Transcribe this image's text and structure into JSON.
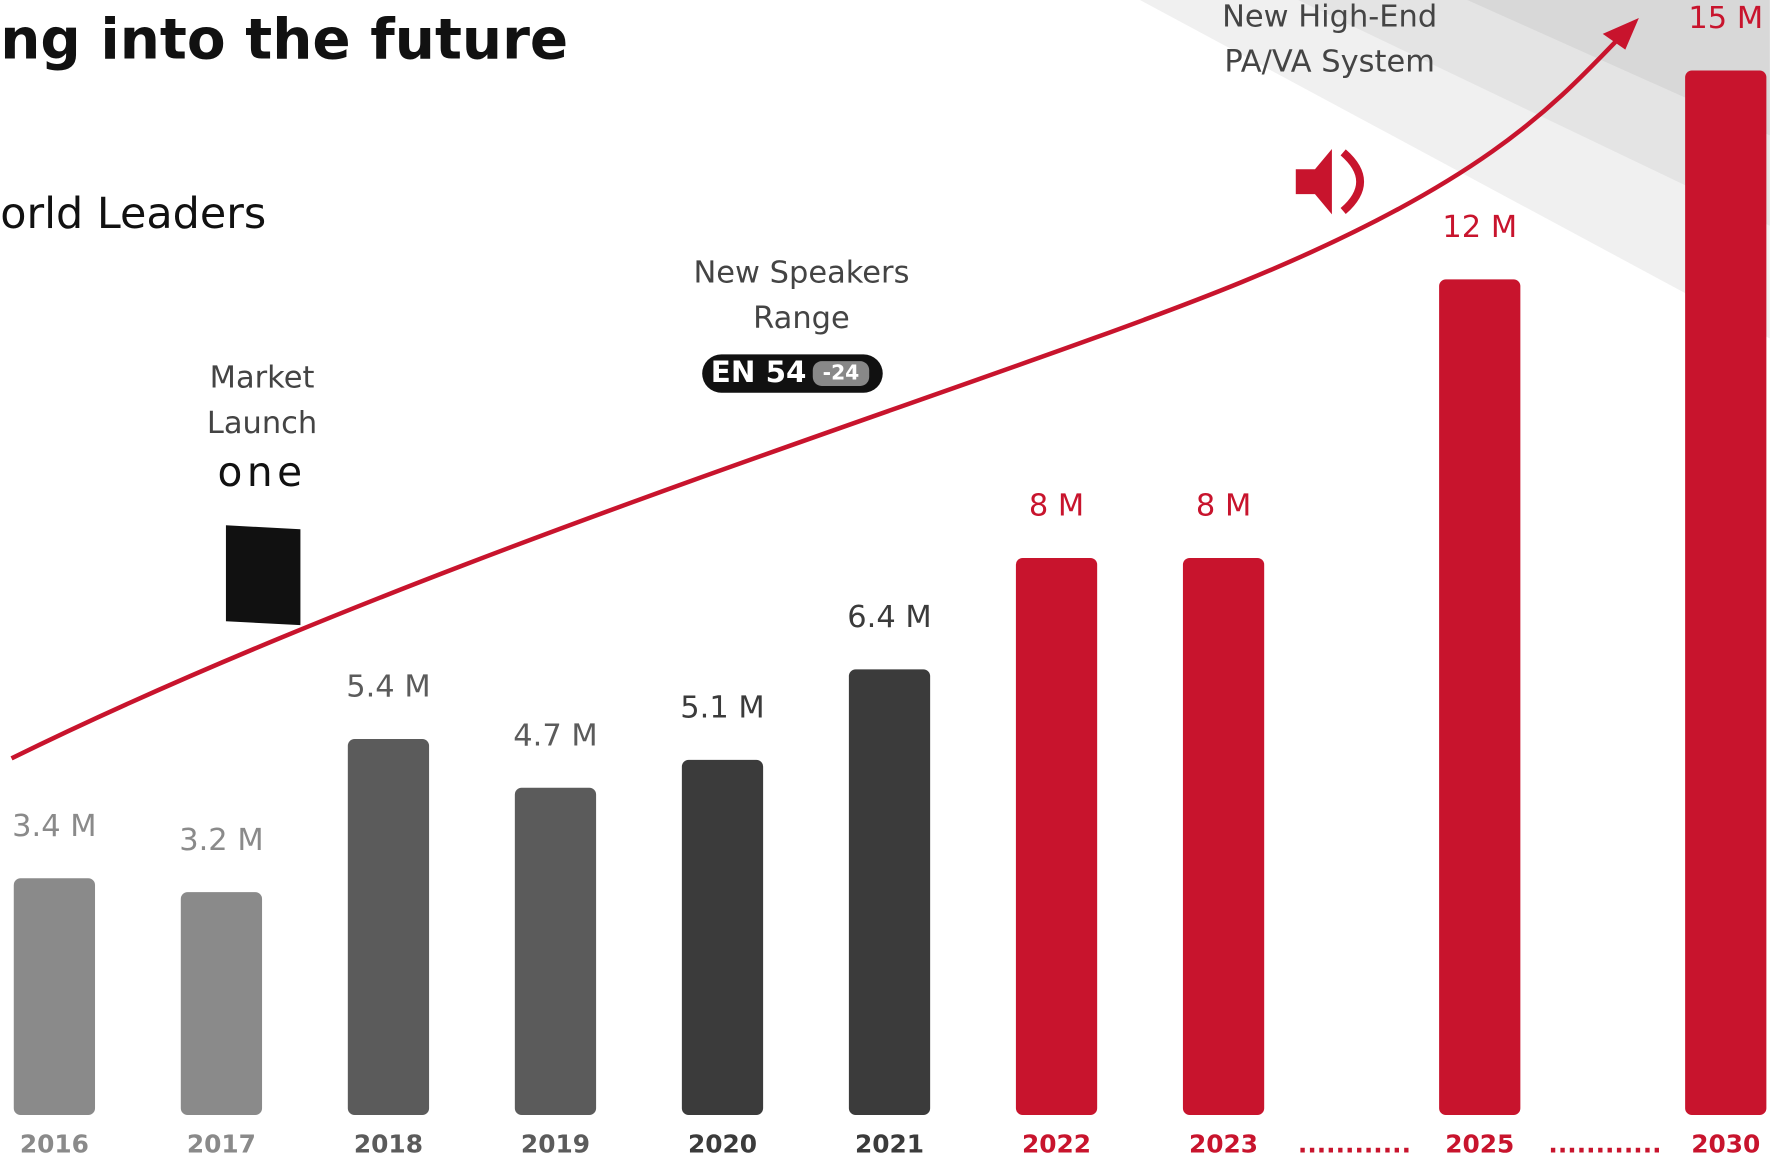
{
  "chart_data": {
    "type": "bar",
    "title": "ng into the future",
    "subtitle": "orld Leaders",
    "categories": [
      "2016",
      "2017",
      "2018",
      "2019",
      "2020",
      "2021",
      "2022",
      "2023",
      "2025",
      "2030"
    ],
    "values": [
      3.4,
      3.2,
      5.4,
      4.7,
      5.1,
      6.4,
      8,
      8,
      12,
      15
    ],
    "value_labels": [
      "3.4 M",
      "3.2 M",
      "5.4 M",
      "4.7 M",
      "5.1 M",
      "6.4 M",
      "8 M",
      "8 M",
      "12 M",
      "15 M"
    ],
    "colors": [
      "#8a8a8a",
      "#8a8a8a",
      "#5b5b5b",
      "#5b5b5b",
      "#3b3b3b",
      "#3b3b3b",
      "#c8142d",
      "#c8142d",
      "#c8142d",
      "#c8142d"
    ],
    "separators": [
      "............",
      "............"
    ],
    "annotations": [
      {
        "lines": [
          "Market",
          "Launch"
        ],
        "logo": "one"
      },
      {
        "lines": [
          "New Speakers",
          "Range"
        ],
        "badge": [
          "EN 54",
          "-24"
        ]
      },
      {
        "lines": [
          "New High-End",
          "PA/VA System"
        ]
      }
    ]
  }
}
